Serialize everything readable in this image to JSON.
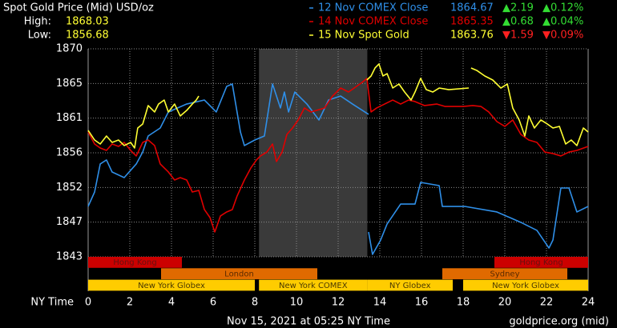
{
  "chart_data": {
    "type": "line",
    "title": "Spot Gold Price (Mid) USD/oz",
    "high": {
      "label": "High:",
      "value": 1868.03
    },
    "low": {
      "label": "Low:",
      "value": 1856.68
    },
    "x_label": "NY Time",
    "timestamp": "Nov 15, 2021 at 05:25 NY Time",
    "source": "goldprice.org (mid)",
    "xlim": [
      0,
      24
    ],
    "xticks": [
      0,
      2,
      4,
      6,
      8,
      10,
      12,
      14,
      16,
      18,
      20,
      22,
      24
    ],
    "ylim": [
      1843,
      1870
    ],
    "yticks": [
      1870,
      {
        "value": 1865.5,
        "label": "1865"
      },
      1861,
      {
        "value": 1856.5,
        "label": "1856"
      },
      1852,
      {
        "value": 1847.5,
        "label": "1847"
      },
      1843
    ],
    "grid": true,
    "series": [
      {
        "name": "12 Nov COMEX Close",
        "color": "#2f8fe8",
        "close": 1864.67,
        "change": "▲2.19",
        "change_pct": "▲0.12%",
        "change_color": "#33dd33",
        "x": [
          0,
          0.31,
          0.58,
          0.88,
          1.15,
          1.73,
          2.31,
          2.62,
          2.88,
          3.46,
          3.85,
          4.73,
          5.58,
          6.15,
          6.65,
          6.92,
          7.31,
          7.5,
          8.0,
          8.46,
          8.85,
          9.23,
          9.42,
          9.62,
          9.92,
          10.5,
          11.08,
          11.54,
          12.12,
          12.69,
          13.46,
          13.46,
          13.46,
          13.65,
          14.04,
          14.35,
          15.0,
          15.69,
          15.96,
          16.85,
          17.0,
          18.08,
          19.62,
          20.77,
          21.54,
          22.12,
          22.31,
          22.69,
          23.08,
          23.46,
          24
        ],
        "values": [
          1849.54,
          1851.41,
          1855.05,
          1855.57,
          1854.01,
          1853.28,
          1855.05,
          1856.6,
          1858.68,
          1859.72,
          1861.8,
          1862.83,
          1863.35,
          1861.8,
          1865.12,
          1865.43,
          1859.2,
          1857.44,
          1858.16,
          1858.68,
          1865.43,
          1862.32,
          1864.39,
          1861.8,
          1864.39,
          1862.83,
          1860.76,
          1863.35,
          1863.87,
          1862.83,
          1861.49,
          null,
          1846.22,
          1843.31,
          1845.18,
          1847.26,
          1849.85,
          1849.85,
          1852.66,
          1852.24,
          1849.54,
          1849.54,
          1848.82,
          1847.47,
          1846.43,
          1844.14,
          1845.18,
          1851.93,
          1851.93,
          1848.82,
          1849.54
        ]
      },
      {
        "name": "14 Nov COMEX Close",
        "color": "#e00000",
        "close": 1865.35,
        "change": "▲0.68",
        "change_pct": "▲0.04%",
        "change_color": "#33dd33",
        "x": [
          0,
          0.31,
          0.58,
          0.88,
          1.15,
          1.46,
          1.73,
          2.04,
          2.31,
          2.62,
          2.88,
          3.19,
          3.46,
          3.85,
          4.15,
          4.42,
          4.73,
          5.0,
          5.31,
          5.58,
          5.85,
          6.08,
          6.35,
          6.65,
          6.92,
          7.15,
          7.5,
          7.81,
          8.08,
          8.27,
          8.58,
          8.85,
          9.04,
          9.31,
          9.54,
          9.81,
          10.08,
          10.38,
          10.69,
          10.96,
          11.35,
          11.73,
          12.12,
          12.5,
          12.88,
          13.15,
          13.38,
          13.58,
          13.85,
          14.23,
          14.62,
          15.0,
          15.38,
          15.69,
          16.15,
          16.73,
          17.12,
          18.0,
          18.46,
          18.85,
          19.23,
          19.62,
          20.0,
          20.38,
          20.77,
          21.15,
          21.54,
          21.92,
          22.31,
          22.69,
          23.08,
          23.46,
          24
        ],
        "values": [
          1859.2,
          1857.64,
          1857.12,
          1856.81,
          1857.64,
          1857.33,
          1857.85,
          1856.81,
          1856.09,
          1857.85,
          1858.16,
          1857.44,
          1855.05,
          1854.01,
          1852.97,
          1853.28,
          1852.97,
          1851.41,
          1851.62,
          1849.13,
          1848.09,
          1846.22,
          1848.3,
          1848.82,
          1849.13,
          1850.89,
          1852.97,
          1854.53,
          1855.57,
          1856.09,
          1856.6,
          1857.64,
          1855.36,
          1856.6,
          1858.89,
          1859.72,
          1860.76,
          1862.32,
          1861.8,
          1862.0,
          1862.32,
          1863.87,
          1864.91,
          1864.39,
          1865.12,
          1865.64,
          1866.16,
          1861.8,
          1862.32,
          1862.83,
          1863.35,
          1862.83,
          1863.35,
          1863.15,
          1862.63,
          1862.83,
          1862.52,
          1862.52,
          1862.63,
          1862.52,
          1861.8,
          1860.55,
          1859.93,
          1860.76,
          1858.89,
          1858.16,
          1857.85,
          1856.6,
          1856.4,
          1856.09,
          1856.6,
          1856.81,
          1857.33
        ]
      },
      {
        "name": "15 Nov Spot Gold",
        "color": "#ffff33",
        "close": 1863.76,
        "change": "▼1.59",
        "change_pct": "▼0.09%",
        "change_color": "#ff2020",
        "x": [
          0,
          0.31,
          0.58,
          0.88,
          1.15,
          1.46,
          1.73,
          2.04,
          2.23,
          2.38,
          2.62,
          2.88,
          3.19,
          3.38,
          3.65,
          3.85,
          4.15,
          4.42,
          4.73,
          5.0,
          5.19,
          5.31,
          5.31,
          13.38,
          13.58,
          13.77,
          13.96,
          14.15,
          14.35,
          14.62,
          14.92,
          15.19,
          15.5,
          15.69,
          15.96,
          16.23,
          16.54,
          16.85,
          17.31,
          18.27,
          18.27,
          18.38,
          18.65,
          19.04,
          19.42,
          19.81,
          20.12,
          20.38,
          20.69,
          20.96,
          21.15,
          21.42,
          21.73,
          22.04,
          22.31,
          22.62,
          22.92,
          23.19,
          23.46,
          23.77,
          24
        ],
        "values": [
          1859.41,
          1858.16,
          1857.64,
          1858.68,
          1857.85,
          1858.16,
          1857.44,
          1857.85,
          1857.12,
          1859.72,
          1860.24,
          1862.63,
          1861.8,
          1862.83,
          1863.35,
          1861.8,
          1862.83,
          1861.28,
          1862.0,
          1862.83,
          1863.35,
          1863.87,
          null,
          1865.95,
          1866.47,
          1867.51,
          1868.03,
          1866.47,
          1866.78,
          1864.91,
          1865.43,
          1864.39,
          1863.35,
          1864.39,
          1866.16,
          1864.7,
          1864.39,
          1864.91,
          1864.7,
          1864.91,
          null,
          1867.51,
          1867.2,
          1866.47,
          1865.95,
          1864.91,
          1865.43,
          1862.32,
          1860.76,
          1858.68,
          1861.28,
          1859.72,
          1860.76,
          1860.24,
          1859.72,
          1859.93,
          1857.64,
          1858.16,
          1857.44,
          1859.72,
          1859.2
        ]
      }
    ],
    "session_rows": [
      {
        "color": "#cc0000",
        "text_color": "#661010",
        "sessions": [
          {
            "name": "Hong Kong",
            "start": 0,
            "end": 4.5
          },
          {
            "name": "Hong Kong",
            "start": 19.5,
            "end": 24
          }
        ]
      },
      {
        "color": "#e06a00",
        "text_color": "#5a2a00",
        "sessions": [
          {
            "name": "London",
            "start": 3.5,
            "end": 11
          },
          {
            "name": "Sydney",
            "start": 17,
            "end": 23
          }
        ]
      },
      {
        "color": "#ffcc00",
        "text_color": "#4a3a00",
        "sessions": [
          {
            "name": "New York Globex",
            "start": 0,
            "end": 8
          },
          {
            "name": "New York COMEX",
            "start": 8.2,
            "end": 13.4
          },
          {
            "name": "NY Globex",
            "start": 13.4,
            "end": 17.5
          },
          {
            "name": "New York Globex",
            "start": 18,
            "end": 24
          }
        ]
      }
    ]
  }
}
